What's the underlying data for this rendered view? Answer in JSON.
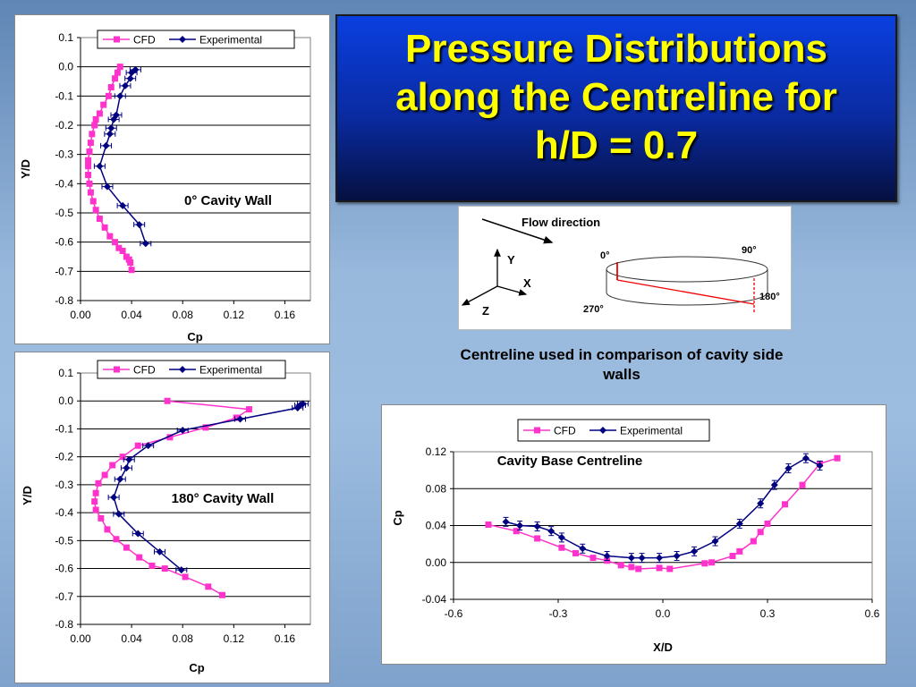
{
  "title": {
    "lines": [
      "Pressure Distributions",
      "along the Centreline for",
      "h/D = 0.7"
    ]
  },
  "colors": {
    "cfd": "#ff33cc",
    "experimental": "#000080",
    "title_text": "#ffff00"
  },
  "diagram": {
    "flow_label": "Flow direction",
    "axes": {
      "y": "Y",
      "x": "X",
      "z": "Z"
    },
    "angles": {
      "a0": "0°",
      "a90": "90°",
      "a180": "180°",
      "a270": "270°"
    }
  },
  "caption": "Centreline used in comparison of cavity side walls",
  "chart_data": [
    {
      "type": "scatter",
      "annotation": "0° Cavity Wall",
      "xlabel": "Cp",
      "ylabel": "Y/D",
      "xlim": [
        0,
        0.18
      ],
      "ylim": [
        -0.8,
        0.1
      ],
      "xticks": [
        "0.00",
        "0.04",
        "0.08",
        "0.12",
        "0.16"
      ],
      "yticks": [
        "0.1",
        "0.0",
        "-0.1",
        "-0.2",
        "-0.3",
        "-0.4",
        "-0.5",
        "-0.6",
        "-0.7",
        "-0.8"
      ],
      "legend": "top-right",
      "series": [
        {
          "name": "CFD",
          "x": [
            0.031,
            0.029,
            0.027,
            0.024,
            0.022,
            0.018,
            0.015,
            0.012,
            0.011,
            0.009,
            0.008,
            0.007,
            0.006,
            0.006,
            0.006,
            0.007,
            0.008,
            0.01,
            0.012,
            0.015,
            0.019,
            0.023,
            0.027,
            0.03,
            0.033,
            0.036,
            0.038,
            0.039,
            0.04
          ],
          "y": [
            0.0,
            -0.02,
            -0.04,
            -0.07,
            -0.1,
            -0.13,
            -0.16,
            -0.18,
            -0.2,
            -0.23,
            -0.26,
            -0.29,
            -0.32,
            -0.34,
            -0.37,
            -0.4,
            -0.43,
            -0.46,
            -0.49,
            -0.52,
            -0.55,
            -0.58,
            -0.6,
            -0.62,
            -0.63,
            -0.65,
            -0.66,
            -0.67,
            -0.695
          ]
        },
        {
          "name": "Experimental",
          "x": [
            0.043,
            0.04,
            0.039,
            0.035,
            0.031,
            0.028,
            0.026,
            0.024,
            0.023,
            0.02,
            0.015,
            0.021,
            0.033,
            0.046,
            0.051
          ],
          "y": [
            -0.01,
            -0.02,
            -0.04,
            -0.065,
            -0.1,
            -0.165,
            -0.18,
            -0.21,
            -0.23,
            -0.27,
            -0.34,
            -0.41,
            -0.475,
            -0.54,
            -0.605
          ]
        }
      ]
    },
    {
      "type": "scatter",
      "annotation": "180° Cavity Wall",
      "xlabel": "Cp",
      "ylabel": "Y/D",
      "xlim": [
        0,
        0.18
      ],
      "ylim": [
        -0.8,
        0.1
      ],
      "xticks": [
        "0.00",
        "0.04",
        "0.08",
        "0.12",
        "0.16"
      ],
      "yticks": [
        "0.1",
        "0.0",
        "-0.1",
        "-0.2",
        "-0.3",
        "-0.4",
        "-0.5",
        "-0.6",
        "-0.7",
        "-0.8"
      ],
      "legend": "top-right",
      "series": [
        {
          "name": "CFD",
          "x": [
            0.068,
            0.132,
            0.122,
            0.098,
            0.07,
            0.045,
            0.033,
            0.025,
            0.019,
            0.014,
            0.012,
            0.011,
            0.012,
            0.016,
            0.021,
            0.028,
            0.036,
            0.046,
            0.056,
            0.066,
            0.082,
            0.1,
            0.111
          ],
          "y": [
            0.0,
            -0.03,
            -0.06,
            -0.095,
            -0.13,
            -0.16,
            -0.2,
            -0.23,
            -0.265,
            -0.295,
            -0.33,
            -0.36,
            -0.39,
            -0.42,
            -0.46,
            -0.495,
            -0.525,
            -0.56,
            -0.59,
            -0.6,
            -0.63,
            -0.665,
            -0.695
          ]
        },
        {
          "name": "Experimental",
          "x": [
            0.174,
            0.172,
            0.17,
            0.125,
            0.08,
            0.053,
            0.038,
            0.036,
            0.031,
            0.026,
            0.03,
            0.045,
            0.062,
            0.079
          ],
          "y": [
            -0.01,
            -0.015,
            -0.025,
            -0.065,
            -0.105,
            -0.16,
            -0.21,
            -0.24,
            -0.28,
            -0.345,
            -0.405,
            -0.475,
            -0.54,
            -0.605
          ]
        }
      ]
    },
    {
      "type": "scatter",
      "annotation": "Cavity Base Centreline",
      "xlabel": "X/D",
      "ylabel": "Cp",
      "xlim": [
        -0.6,
        0.6
      ],
      "ylim": [
        -0.04,
        0.12
      ],
      "xticks": [
        "-0.6",
        "-0.3",
        "0.0",
        "0.3",
        "0.6"
      ],
      "yticks": [
        "0.12",
        "0.08",
        "0.04",
        "0.00",
        "-0.04"
      ],
      "legend": "top-center",
      "series": [
        {
          "name": "CFD",
          "x": [
            -0.5,
            -0.42,
            -0.36,
            -0.29,
            -0.25,
            -0.2,
            -0.16,
            -0.12,
            -0.09,
            -0.07,
            -0.01,
            0.02,
            0.12,
            0.14,
            0.2,
            0.22,
            0.26,
            0.28,
            0.3,
            0.35,
            0.4,
            0.45,
            0.5
          ],
          "y": [
            0.041,
            0.034,
            0.026,
            0.016,
            0.01,
            0.005,
            0.002,
            -0.003,
            -0.005,
            -0.007,
            -0.006,
            -0.007,
            -0.001,
            0.0,
            0.007,
            0.012,
            0.023,
            0.033,
            0.042,
            0.063,
            0.084,
            0.107,
            0.113
          ]
        },
        {
          "name": "Experimental",
          "x": [
            -0.45,
            -0.41,
            -0.36,
            -0.32,
            -0.29,
            -0.23,
            -0.16,
            -0.09,
            -0.06,
            -0.01,
            0.04,
            0.09,
            0.15,
            0.22,
            0.28,
            0.32,
            0.36,
            0.41,
            0.45
          ],
          "y": [
            0.044,
            0.04,
            0.039,
            0.034,
            0.027,
            0.015,
            0.007,
            0.005,
            0.005,
            0.005,
            0.007,
            0.012,
            0.023,
            0.042,
            0.064,
            0.084,
            0.102,
            0.113,
            0.105
          ]
        }
      ]
    }
  ]
}
